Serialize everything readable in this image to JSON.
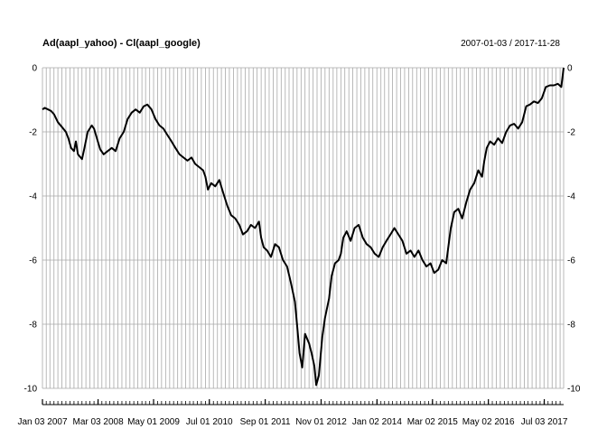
{
  "chart_data": {
    "type": "line",
    "title": "Ad(aapl_yahoo) - Cl(aapl_google)",
    "date_range": "2007-01-03 / 2017-11-28",
    "x_range": [
      "2007-01-03",
      "2017-11-28"
    ],
    "ylim": [
      -10,
      0
    ],
    "y_ticks": [
      0,
      -2,
      -4,
      -6,
      -8,
      -10
    ],
    "x_tick_labels": [
      {
        "date": "2007-01-03",
        "label": "Jan 03 2007"
      },
      {
        "date": "2008-03-03",
        "label": "Mar 03 2008"
      },
      {
        "date": "2009-05-01",
        "label": "May 01 2009"
      },
      {
        "date": "2010-07-01",
        "label": "Jul 01 2010"
      },
      {
        "date": "2011-09-01",
        "label": "Sep 01 2011"
      },
      {
        "date": "2012-11-01",
        "label": "Nov 01 2012"
      },
      {
        "date": "2014-01-02",
        "label": "Jan 02 2014"
      },
      {
        "date": "2015-03-02",
        "label": "Mar 02 2015"
      },
      {
        "date": "2016-05-02",
        "label": "May 02 2016"
      },
      {
        "date": "2017-07-03",
        "label": "Jul 03 2017"
      }
    ],
    "grid": true,
    "grid_color": "#a8a8a8",
    "line_color": "#000000",
    "series": [
      {
        "points": [
          [
            "2007-01-03",
            -1.3
          ],
          [
            "2007-01-20",
            -1.25
          ],
          [
            "2007-02-15",
            -1.3
          ],
          [
            "2007-03-10",
            -1.35
          ],
          [
            "2007-04-01",
            -1.45
          ],
          [
            "2007-05-01",
            -1.7
          ],
          [
            "2007-06-01",
            -1.85
          ],
          [
            "2007-07-01",
            -2.0
          ],
          [
            "2007-07-20",
            -2.2
          ],
          [
            "2007-08-10",
            -2.5
          ],
          [
            "2007-09-01",
            -2.6
          ],
          [
            "2007-09-15",
            -2.3
          ],
          [
            "2007-10-01",
            -2.7
          ],
          [
            "2007-11-01",
            -2.85
          ],
          [
            "2007-11-20",
            -2.5
          ],
          [
            "2007-12-15",
            -2.0
          ],
          [
            "2008-01-15",
            -1.8
          ],
          [
            "2008-02-01",
            -1.9
          ],
          [
            "2008-03-01",
            -2.3
          ],
          [
            "2008-03-20",
            -2.55
          ],
          [
            "2008-04-15",
            -2.7
          ],
          [
            "2008-05-15",
            -2.6
          ],
          [
            "2008-06-15",
            -2.5
          ],
          [
            "2008-07-15",
            -2.6
          ],
          [
            "2008-08-15",
            -2.2
          ],
          [
            "2008-09-15",
            -2.0
          ],
          [
            "2008-10-15",
            -1.6
          ],
          [
            "2008-11-15",
            -1.4
          ],
          [
            "2008-12-15",
            -1.3
          ],
          [
            "2009-01-15",
            -1.4
          ],
          [
            "2009-02-15",
            -1.2
          ],
          [
            "2009-03-15",
            -1.15
          ],
          [
            "2009-04-15",
            -1.3
          ],
          [
            "2009-05-15",
            -1.6
          ],
          [
            "2009-06-15",
            -1.8
          ],
          [
            "2009-07-15",
            -1.9
          ],
          [
            "2009-08-15",
            -2.1
          ],
          [
            "2009-09-15",
            -2.3
          ],
          [
            "2009-10-15",
            -2.5
          ],
          [
            "2009-11-15",
            -2.7
          ],
          [
            "2009-12-15",
            -2.8
          ],
          [
            "2010-01-15",
            -2.9
          ],
          [
            "2010-02-15",
            -2.8
          ],
          [
            "2010-03-15",
            -3.0
          ],
          [
            "2010-04-15",
            -3.1
          ],
          [
            "2010-05-15",
            -3.2
          ],
          [
            "2010-06-01",
            -3.4
          ],
          [
            "2010-06-20",
            -3.8
          ],
          [
            "2010-07-15",
            -3.6
          ],
          [
            "2010-08-15",
            -3.7
          ],
          [
            "2010-09-15",
            -3.5
          ],
          [
            "2010-10-15",
            -3.9
          ],
          [
            "2010-11-15",
            -4.3
          ],
          [
            "2010-12-15",
            -4.6
          ],
          [
            "2011-01-15",
            -4.7
          ],
          [
            "2011-02-15",
            -4.9
          ],
          [
            "2011-03-15",
            -5.2
          ],
          [
            "2011-04-15",
            -5.1
          ],
          [
            "2011-05-15",
            -4.9
          ],
          [
            "2011-06-15",
            -5.0
          ],
          [
            "2011-07-15",
            -4.8
          ],
          [
            "2011-08-01",
            -5.3
          ],
          [
            "2011-08-20",
            -5.6
          ],
          [
            "2011-09-15",
            -5.7
          ],
          [
            "2011-10-15",
            -5.9
          ],
          [
            "2011-11-15",
            -5.5
          ],
          [
            "2011-12-15",
            -5.6
          ],
          [
            "2012-01-15",
            -6.0
          ],
          [
            "2012-02-15",
            -6.2
          ],
          [
            "2012-03-15",
            -6.7
          ],
          [
            "2012-04-15",
            -7.3
          ],
          [
            "2012-05-01",
            -8.0
          ],
          [
            "2012-05-20",
            -8.9
          ],
          [
            "2012-06-10",
            -9.35
          ],
          [
            "2012-07-01",
            -8.3
          ],
          [
            "2012-08-01",
            -8.6
          ],
          [
            "2012-08-20",
            -8.9
          ],
          [
            "2012-09-10",
            -9.3
          ],
          [
            "2012-09-25",
            -9.9
          ],
          [
            "2012-10-15",
            -9.6
          ],
          [
            "2012-11-10",
            -8.4
          ],
          [
            "2012-12-01",
            -7.8
          ],
          [
            "2013-01-01",
            -7.2
          ],
          [
            "2013-01-20",
            -6.5
          ],
          [
            "2013-02-15",
            -6.1
          ],
          [
            "2013-03-15",
            -6.0
          ],
          [
            "2013-04-01",
            -5.8
          ],
          [
            "2013-04-20",
            -5.3
          ],
          [
            "2013-05-15",
            -5.1
          ],
          [
            "2013-06-15",
            -5.4
          ],
          [
            "2013-07-15",
            -5.0
          ],
          [
            "2013-08-15",
            -4.9
          ],
          [
            "2013-09-15",
            -5.3
          ],
          [
            "2013-10-15",
            -5.5
          ],
          [
            "2013-11-15",
            -5.6
          ],
          [
            "2013-12-15",
            -5.8
          ],
          [
            "2014-01-15",
            -5.9
          ],
          [
            "2014-02-15",
            -5.6
          ],
          [
            "2014-03-15",
            -5.4
          ],
          [
            "2014-04-15",
            -5.2
          ],
          [
            "2014-05-15",
            -5.0
          ],
          [
            "2014-06-15",
            -5.2
          ],
          [
            "2014-07-15",
            -5.4
          ],
          [
            "2014-08-15",
            -5.8
          ],
          [
            "2014-09-15",
            -5.7
          ],
          [
            "2014-10-15",
            -5.9
          ],
          [
            "2014-11-15",
            -5.7
          ],
          [
            "2014-12-15",
            -6.0
          ],
          [
            "2015-01-15",
            -6.2
          ],
          [
            "2015-02-15",
            -6.1
          ],
          [
            "2015-03-15",
            -6.4
          ],
          [
            "2015-04-15",
            -6.3
          ],
          [
            "2015-05-15",
            -6.0
          ],
          [
            "2015-06-15",
            -6.1
          ],
          [
            "2015-07-01",
            -5.6
          ],
          [
            "2015-07-20",
            -5.0
          ],
          [
            "2015-08-15",
            -4.5
          ],
          [
            "2015-09-15",
            -4.4
          ],
          [
            "2015-10-15",
            -4.7
          ],
          [
            "2015-11-15",
            -4.2
          ],
          [
            "2015-12-15",
            -3.8
          ],
          [
            "2016-01-15",
            -3.6
          ],
          [
            "2016-02-15",
            -3.2
          ],
          [
            "2016-03-15",
            -3.4
          ],
          [
            "2016-04-01",
            -2.9
          ],
          [
            "2016-04-20",
            -2.5
          ],
          [
            "2016-05-15",
            -2.3
          ],
          [
            "2016-06-15",
            -2.4
          ],
          [
            "2016-07-15",
            -2.2
          ],
          [
            "2016-08-15",
            -2.35
          ],
          [
            "2016-09-15",
            -2.0
          ],
          [
            "2016-10-15",
            -1.8
          ],
          [
            "2016-11-15",
            -1.75
          ],
          [
            "2016-12-15",
            -1.9
          ],
          [
            "2017-01-15",
            -1.7
          ],
          [
            "2017-02-15",
            -1.2
          ],
          [
            "2017-03-15",
            -1.15
          ],
          [
            "2017-04-15",
            -1.05
          ],
          [
            "2017-05-15",
            -1.1
          ],
          [
            "2017-06-15",
            -0.95
          ],
          [
            "2017-07-15",
            -0.6
          ],
          [
            "2017-08-15",
            -0.55
          ],
          [
            "2017-09-15",
            -0.55
          ],
          [
            "2017-10-15",
            -0.5
          ],
          [
            "2017-11-10",
            -0.6
          ],
          [
            "2017-11-28",
            0.0
          ]
        ]
      }
    ]
  }
}
